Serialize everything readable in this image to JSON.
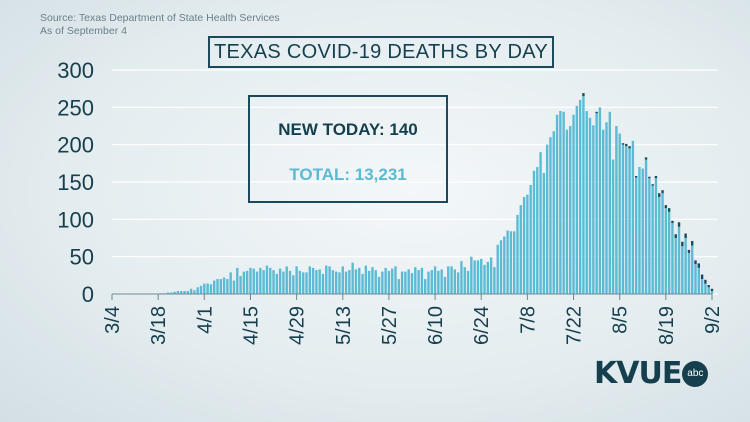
{
  "source": {
    "line1": "Source: Texas Department of State Health Services",
    "line2": "As of September 4"
  },
  "title": "TEXAS COVID-19 DEATHS BY DAY",
  "summary": {
    "new_today": "NEW TODAY: 140",
    "total": "TOTAL: 13,231"
  },
  "logo": {
    "text": "KVUE",
    "badge": "abc"
  },
  "colors": {
    "bar": "#5bbad4",
    "bar_recent": "#1c4a5a",
    "text_dark": "#163f4d",
    "accent": "#5bbad4"
  },
  "chart_data": {
    "type": "bar",
    "ylim": [
      0,
      300
    ],
    "yticks": [
      0,
      50,
      100,
      150,
      200,
      250,
      300
    ],
    "grid": true,
    "xtick_labels": [
      "3/4",
      "3/18",
      "4/1",
      "4/15",
      "4/29",
      "5/13",
      "5/27",
      "6/10",
      "6/24",
      "7/8",
      "7/22",
      "8/5",
      "8/19",
      "9/2"
    ],
    "x_start": "3/4",
    "x_end": "9/2",
    "values": [
      0,
      0,
      0,
      0,
      0,
      0,
      0,
      0,
      0,
      0,
      0,
      0,
      0,
      0,
      0,
      1,
      1,
      2,
      2,
      3,
      4,
      4,
      4,
      4,
      7,
      5,
      9,
      11,
      14,
      14,
      13,
      18,
      20,
      20,
      22,
      20,
      29,
      18,
      35,
      24,
      30,
      31,
      35,
      34,
      30,
      35,
      32,
      38,
      35,
      32,
      27,
      34,
      30,
      37,
      31,
      25,
      37,
      31,
      29,
      29,
      37,
      35,
      32,
      33,
      27,
      38,
      37,
      32,
      30,
      29,
      37,
      30,
      32,
      42,
      33,
      35,
      27,
      38,
      31,
      36,
      32,
      23,
      30,
      35,
      31,
      34,
      37,
      20,
      30,
      30,
      33,
      28,
      36,
      32,
      35,
      20,
      30,
      32,
      37,
      31,
      33,
      23,
      37,
      37,
      33,
      29,
      44,
      36,
      31,
      50,
      45,
      45,
      47,
      39,
      43,
      49,
      36,
      66,
      72,
      77,
      85,
      84,
      84,
      106,
      119,
      130,
      133,
      146,
      165,
      170,
      190,
      162,
      200,
      210,
      218,
      240,
      245,
      244,
      220,
      225,
      240,
      252,
      260,
      265,
      245,
      236,
      226,
      242,
      250,
      220,
      230,
      244,
      180,
      225,
      215,
      200,
      198,
      195,
      205,
      156,
      170,
      168,
      180,
      155,
      145,
      155,
      130,
      135,
      115,
      110,
      95,
      75,
      90,
      64,
      75,
      55,
      65,
      40,
      35,
      20,
      14,
      9,
      4
    ],
    "recent_values": [
      0,
      0,
      0,
      0,
      0,
      0,
      0,
      0,
      0,
      0,
      0,
      0,
      0,
      0,
      0,
      0,
      0,
      0,
      0,
      0,
      0,
      0,
      0,
      0,
      0,
      0,
      0,
      0,
      0,
      0,
      0,
      0,
      0,
      0,
      0,
      0,
      0,
      0,
      0,
      0,
      0,
      0,
      0,
      0,
      0,
      0,
      0,
      0,
      0,
      0,
      0,
      0,
      0,
      0,
      0,
      0,
      0,
      0,
      0,
      0,
      0,
      0,
      0,
      0,
      0,
      0,
      0,
      0,
      0,
      0,
      0,
      0,
      0,
      0,
      0,
      0,
      0,
      0,
      0,
      0,
      0,
      0,
      0,
      0,
      0,
      0,
      0,
      0,
      0,
      0,
      0,
      0,
      0,
      0,
      0,
      0,
      0,
      0,
      0,
      0,
      0,
      0,
      0,
      0,
      0,
      0,
      0,
      0,
      0,
      0,
      0,
      0,
      0,
      0,
      0,
      0,
      0,
      0,
      0,
      0,
      0,
      0,
      0,
      0,
      0,
      0,
      0,
      0,
      0,
      0,
      0,
      0,
      0,
      0,
      0,
      0,
      0,
      0,
      0,
      0,
      0,
      0,
      0,
      4,
      0,
      0,
      0,
      2,
      0,
      0,
      0,
      0,
      0,
      0,
      0,
      2,
      3,
      3,
      0,
      2,
      0,
      0,
      3,
      2,
      2,
      3,
      5,
      4,
      4,
      5,
      3,
      5,
      6,
      6,
      6,
      4,
      6,
      5,
      6,
      6,
      5,
      3,
      3
    ]
  }
}
